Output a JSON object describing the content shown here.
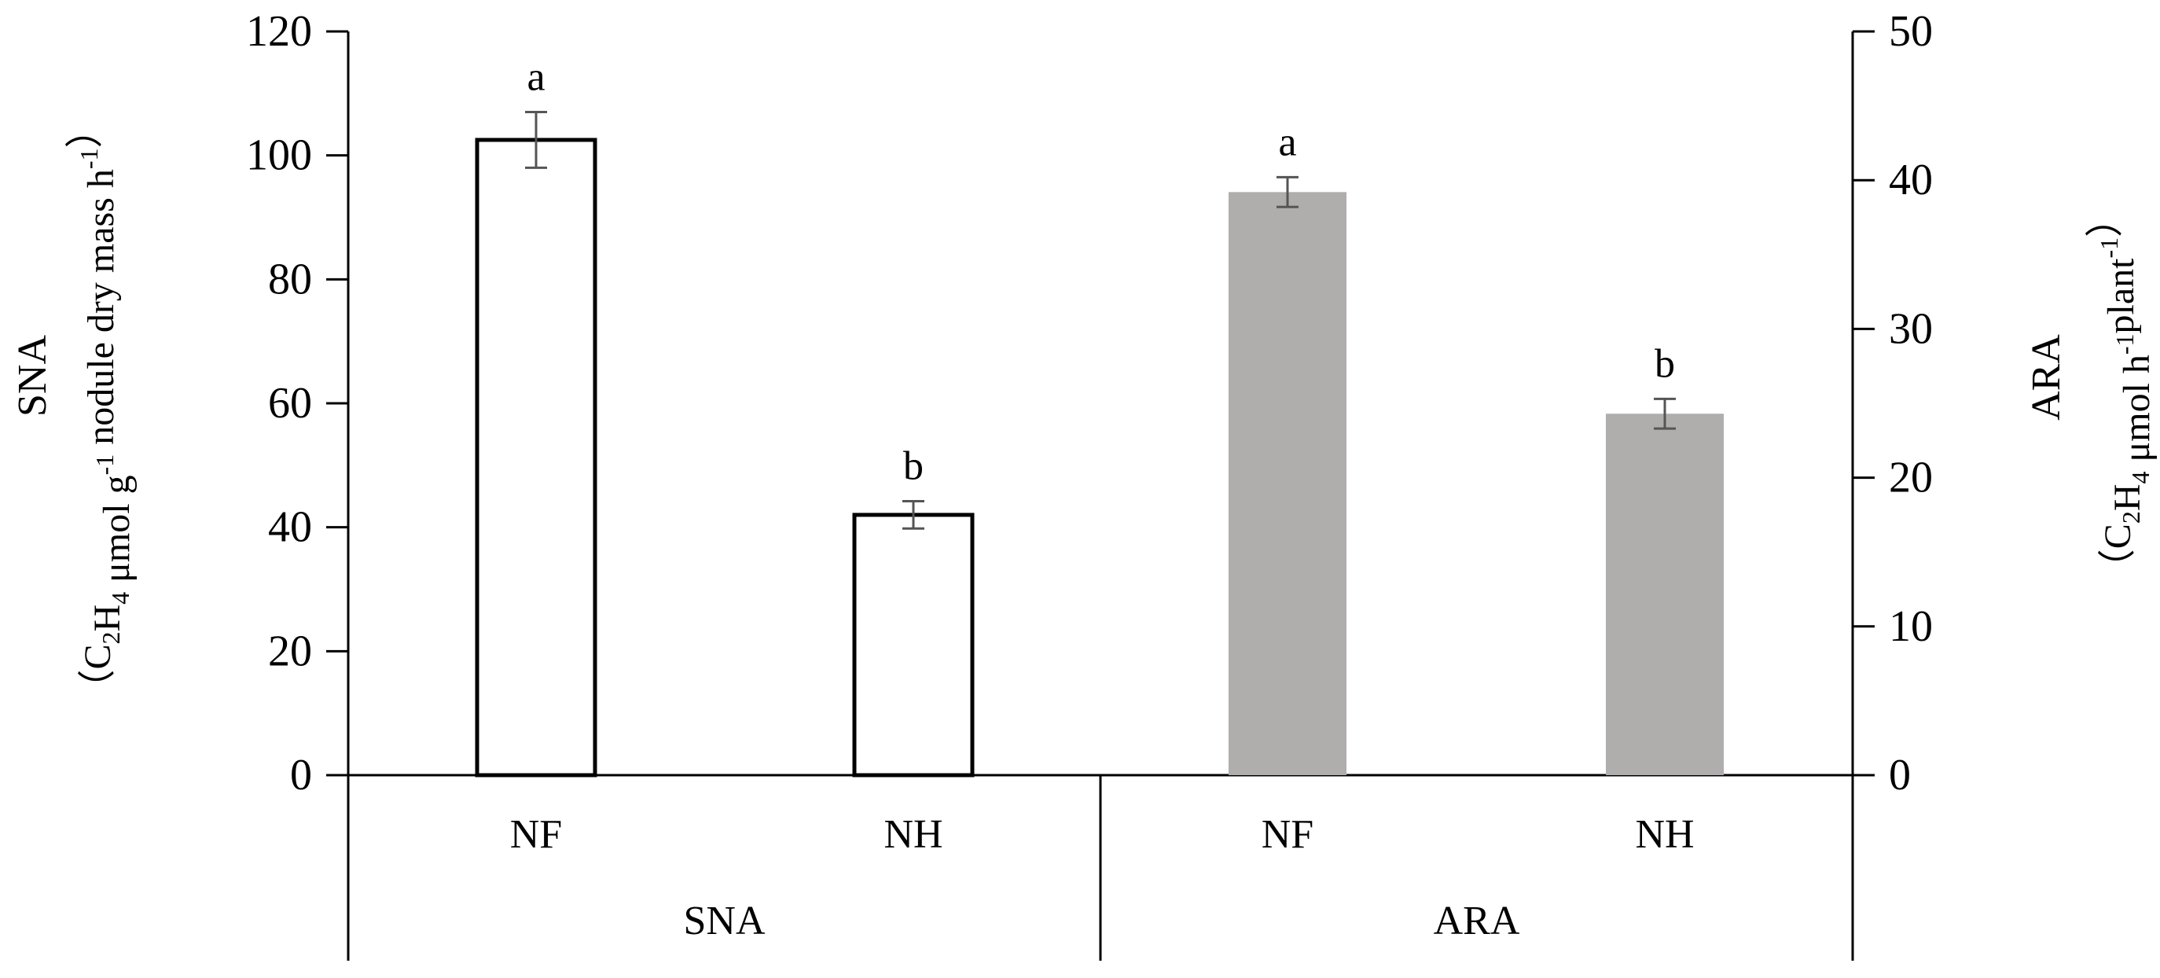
{
  "chart_data": {
    "type": "bar",
    "groups": [
      "SNA",
      "ARA"
    ],
    "categories": [
      "NF",
      "NH"
    ],
    "series": [
      {
        "name": "SNA",
        "axis": "left",
        "values": [
          102.5,
          42.0
        ],
        "errors": [
          4.5,
          2.2
        ],
        "letters": [
          "a",
          "b"
        ],
        "fill": "#ffffff",
        "stroke": "#000000"
      },
      {
        "name": "ARA",
        "axis": "right",
        "values": [
          39.2,
          24.3
        ],
        "errors": [
          1.0,
          1.0
        ],
        "letters": [
          "a",
          "b"
        ],
        "fill": "#b0adad",
        "stroke": "none"
      }
    ],
    "left_axis": {
      "title": "SNA",
      "unit_parts": [
        "（C",
        "2",
        "H",
        "4",
        " μmol g",
        "-1",
        " nodule dry mass h",
        "-1",
        "）"
      ],
      "ylim": [
        0,
        120
      ],
      "ticks": [
        "0",
        "20",
        "40",
        "60",
        "80",
        "100",
        "120"
      ]
    },
    "right_axis": {
      "title": "ARA",
      "unit_parts": [
        "（C",
        "2",
        "H",
        "4",
        " μmol h",
        "-1",
        "plant",
        "-1",
        "）"
      ],
      "ylim": [
        0,
        50
      ],
      "ticks": [
        "0",
        "10",
        "20",
        "30",
        "40",
        "50"
      ]
    },
    "error_bar_color": "#555555"
  }
}
